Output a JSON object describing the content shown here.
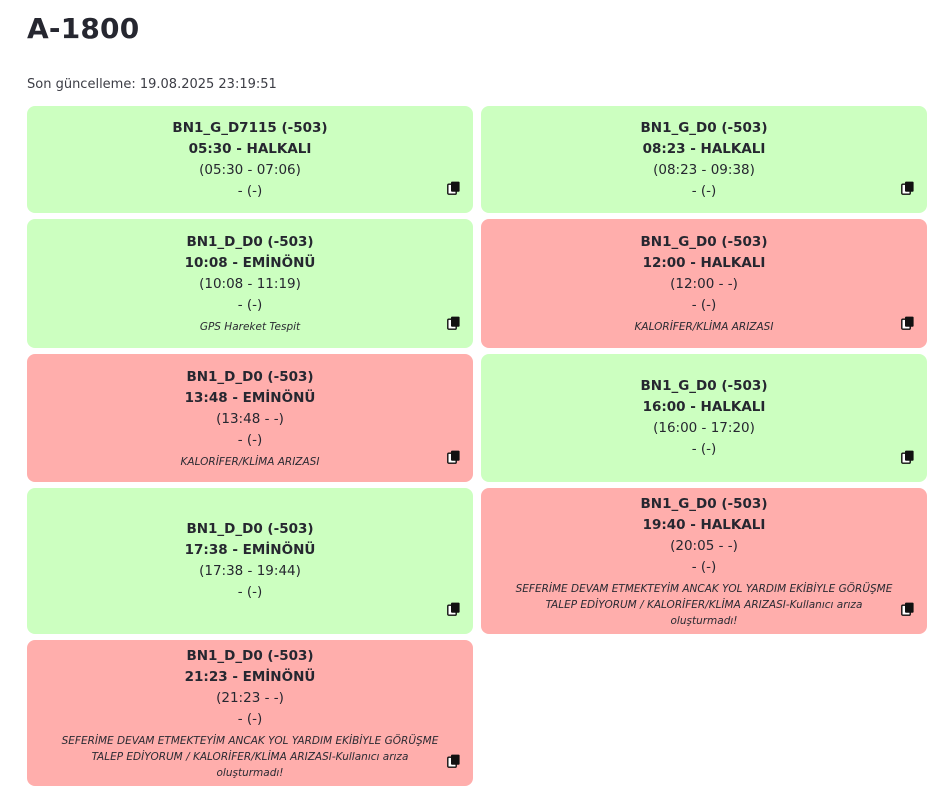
{
  "page": {
    "title": "A-1800",
    "last_update_label": "Son güncelleme: 19.08.2025 23:19:51"
  },
  "icons": {
    "copy": "copy-icon"
  },
  "colors": {
    "ok": "#ccffc0",
    "fault": "#ffaeac"
  },
  "trips": [
    {
      "status": "ok",
      "code": "BN1_G_D7115 (-503)",
      "departure": "05:30 - HALKALI",
      "window": "(05:30 - 07:06)",
      "extra": "- (-)",
      "note": ""
    },
    {
      "status": "ok",
      "code": "BN1_G_D0 (-503)",
      "departure": "08:23 - HALKALI",
      "window": "(08:23 - 09:38)",
      "extra": "- (-)",
      "note": ""
    },
    {
      "status": "ok",
      "code": "BN1_D_D0 (-503)",
      "departure": "10:08 - EMİNÖNÜ",
      "window": "(10:08 - 11:19)",
      "extra": "- (-)",
      "note": "GPS Hareket Tespit"
    },
    {
      "status": "fault",
      "code": "BN1_G_D0 (-503)",
      "departure": "12:00 - HALKALI",
      "window": "(12:00 - -)",
      "extra": "- (-)",
      "note": "KALORİFER/KLİMA ARIZASI"
    },
    {
      "status": "fault",
      "code": "BN1_D_D0 (-503)",
      "departure": "13:48 - EMİNÖNÜ",
      "window": "(13:48 - -)",
      "extra": "- (-)",
      "note": "KALORİFER/KLİMA ARIZASI"
    },
    {
      "status": "ok",
      "code": "BN1_G_D0 (-503)",
      "departure": "16:00 - HALKALI",
      "window": "(16:00 - 17:20)",
      "extra": "- (-)",
      "note": ""
    },
    {
      "status": "ok",
      "code": "BN1_D_D0 (-503)",
      "departure": "17:38 - EMİNÖNÜ",
      "window": "(17:38 - 19:44)",
      "extra": "- (-)",
      "note": ""
    },
    {
      "status": "fault",
      "code": "BN1_G_D0 (-503)",
      "departure": "19:40 - HALKALI",
      "window": "(20:05 - -)",
      "extra": "- (-)",
      "note": "SEFERİME DEVAM ETMEKTEYİM ANCAK YOL YARDIM EKİBİYLE GÖRÜŞME TALEP EDİYORUM / KALORİFER/KLİMA ARIZASI-Kullanıcı arıza oluşturmadı!"
    },
    {
      "status": "fault",
      "code": "BN1_D_D0 (-503)",
      "departure": "21:23 - EMİNÖNÜ",
      "window": "(21:23 - -)",
      "extra": "- (-)",
      "note": "SEFERİME DEVAM ETMEKTEYİM ANCAK YOL YARDIM EKİBİYLE GÖRÜŞME TALEP EDİYORUM / KALORİFER/KLİMA ARIZASI-Kullanıcı arıza oluşturmadı!"
    }
  ]
}
